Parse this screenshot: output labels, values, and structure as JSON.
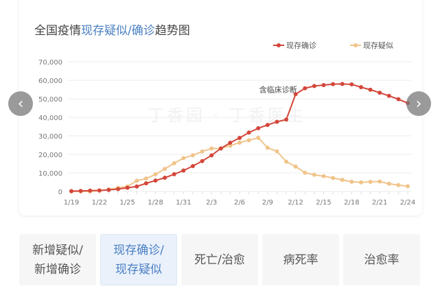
{
  "title": {
    "prefix": "全国疫情",
    "highlight": "现存疑似/确诊",
    "suffix": "趋势图"
  },
  "legend": [
    {
      "label": "现存确诊",
      "color": "#d4463a"
    },
    {
      "label": "现存疑似",
      "color": "#f0c48a"
    }
  ],
  "watermark": "丁香园 · 丁香医生",
  "nav": {
    "prev": "‹",
    "next": "›"
  },
  "tabs": [
    {
      "label": "新增疑似/\n新增确诊",
      "active": false
    },
    {
      "label": "现存确诊/\n现存疑似",
      "active": true
    },
    {
      "label": "死亡/治愈",
      "active": false
    },
    {
      "label": "病死率",
      "active": false
    },
    {
      "label": "治愈率",
      "active": false
    }
  ],
  "chart_data": {
    "type": "line",
    "title": "全国疫情现存疑似/确诊趋势图",
    "x": [
      "1/19",
      "1/20",
      "1/21",
      "1/22",
      "1/23",
      "1/24",
      "1/25",
      "1/26",
      "1/27",
      "1/28",
      "1/29",
      "1/30",
      "1/31",
      "2/1",
      "2/2",
      "2/3",
      "2/4",
      "2/5",
      "2/6",
      "2/7",
      "2/8",
      "2/9",
      "2/10",
      "2/11",
      "2/12",
      "2/13",
      "2/14",
      "2/15",
      "2/16",
      "2/17",
      "2/18",
      "2/19",
      "2/20",
      "2/21",
      "2/22",
      "2/23",
      "2/24"
    ],
    "xticks": [
      "1/19",
      "1/22",
      "1/25",
      "1/28",
      "1/31",
      "2/3",
      "2/6",
      "2/9",
      "2/12",
      "2/15",
      "2/18",
      "2/21",
      "2/24"
    ],
    "yticks": [
      "0",
      "10,000",
      "20,000",
      "30,000",
      "40,000",
      "50,000",
      "60,000",
      "70,000"
    ],
    "ylim": [
      0,
      70000
    ],
    "grid": true,
    "legend_position": "top-right",
    "series": [
      {
        "name": "现存确诊",
        "color": "#d4463a",
        "values": [
          200,
          290,
          440,
          570,
          830,
          1300,
          2000,
          2700,
          4400,
          5900,
          7400,
          9300,
          11300,
          13700,
          16400,
          19500,
          23200,
          26300,
          28900,
          31800,
          34100,
          35900,
          37600,
          38800,
          52500,
          55700,
          56900,
          57400,
          57900,
          58000,
          57800,
          56300,
          54900,
          53300,
          51600,
          49800,
          47700
        ]
      },
      {
        "name": "现存疑似",
        "color": "#f0c48a",
        "values": [
          0,
          54,
          37,
          393,
          1072,
          1965,
          2684,
          5794,
          6973,
          9239,
          12167,
          15238,
          17988,
          19544,
          21558,
          23214,
          23260,
          24702,
          26359,
          27657,
          28942,
          23589,
          21675,
          16067,
          13435,
          10109,
          8969,
          8228,
          7264,
          6242,
          5248,
          4922,
          5206,
          5365,
          4148,
          3434,
          2824
        ]
      }
    ],
    "annotations": [
      {
        "text": "含临床诊断",
        "x": "2/12"
      }
    ]
  }
}
